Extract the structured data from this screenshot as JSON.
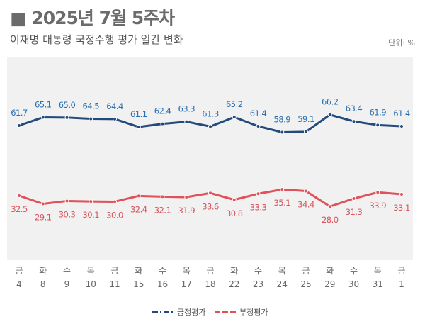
{
  "header": {
    "title": "■ 2025년 7월 5주차",
    "subtitle": "이재명 대통령 국정수행 평가 일간 변화",
    "unit": "단위: %"
  },
  "chart_data": {
    "type": "line",
    "categories_day": [
      "금",
      "화",
      "수",
      "목",
      "금",
      "화",
      "수",
      "목",
      "금",
      "화",
      "수",
      "목",
      "금",
      "화",
      "수",
      "목",
      "금"
    ],
    "categories_date": [
      "4",
      "8",
      "9",
      "10",
      "11",
      "15",
      "16",
      "17",
      "18",
      "22",
      "23",
      "24",
      "25",
      "29",
      "30",
      "31",
      "1"
    ],
    "series": [
      {
        "name": "긍정평가",
        "color": "#244a7c",
        "label_color": "#2a6fb0",
        "values": [
          61.7,
          65.1,
          65.0,
          64.5,
          64.4,
          61.1,
          62.4,
          63.3,
          61.3,
          65.2,
          61.4,
          58.9,
          59.1,
          66.2,
          63.4,
          61.9,
          61.4
        ]
      },
      {
        "name": "부정평가",
        "color": "#e0525a",
        "label_color": "#d9545c",
        "values": [
          32.5,
          29.1,
          30.3,
          30.1,
          30.0,
          32.4,
          32.1,
          31.9,
          33.6,
          30.8,
          33.3,
          35.1,
          34.4,
          28.0,
          31.3,
          33.9,
          33.1
        ]
      }
    ],
    "grid": false,
    "legend": "bottom-center"
  }
}
